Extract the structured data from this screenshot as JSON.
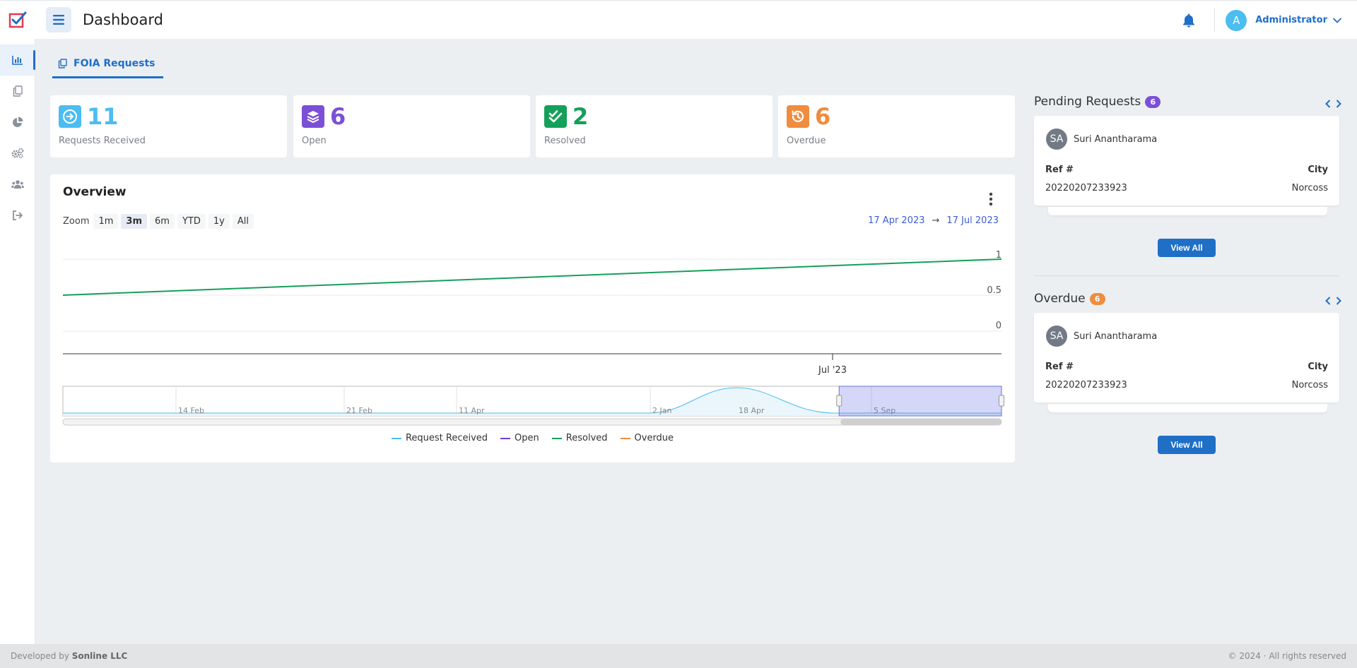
{
  "header": {
    "title": "Dashboard",
    "user_initial": "A",
    "user_name": "Administrator"
  },
  "sidebar": {
    "items": [
      {
        "name": "bar-chart-icon",
        "active": true
      },
      {
        "name": "copy-icon",
        "active": false
      },
      {
        "name": "pie-chart-icon",
        "active": false
      },
      {
        "name": "gears-icon",
        "active": false
      },
      {
        "name": "users-icon",
        "active": false
      },
      {
        "name": "sign-out-icon",
        "active": false
      }
    ]
  },
  "tab": {
    "label": "FOIA Requests"
  },
  "stats": [
    {
      "value": "11",
      "label": "Requests Received",
      "color": "#4bbdf0",
      "icon": "arrow-circle-right-icon"
    },
    {
      "value": "6",
      "label": "Open",
      "color": "#7b4fd6",
      "icon": "layers-icon"
    },
    {
      "value": "2",
      "label": "Resolved",
      "color": "#14a05a",
      "icon": "check-double-icon"
    },
    {
      "value": "6",
      "label": "Overdue",
      "color": "#ef8c3e",
      "icon": "history-icon"
    }
  ],
  "overview": {
    "title": "Overview",
    "zoom_label": "Zoom",
    "zoom_options": [
      "1m",
      "3m",
      "6m",
      "YTD",
      "1y",
      "All"
    ],
    "zoom_selected": "3m",
    "range_from": "17 Apr 2023",
    "range_to": "17 Jul 2023",
    "range_arrow": "→"
  },
  "chart_data": {
    "type": "line",
    "series": [
      {
        "name": "Request Received",
        "color": "#4bbdf0"
      },
      {
        "name": "Open",
        "color": "#6a3fe0"
      },
      {
        "name": "Resolved",
        "color": "#14a05a",
        "x": [
          "17 Apr 2023",
          "17 Jul 2023"
        ],
        "values": [
          0.5,
          1
        ]
      },
      {
        "name": "Overdue",
        "color": "#ef8c3e"
      }
    ],
    "yticks": [
      "1",
      "0.5",
      "0"
    ],
    "ylim": [
      0,
      1
    ],
    "xticks": [
      "Jul '23"
    ],
    "navigator_labels": [
      "14 Feb",
      "21 Feb",
      "11 Apr",
      "2 Jan",
      "18 Apr",
      "5 Sep"
    ],
    "navigator_selected_range": [
      0.827,
      1.0
    ]
  },
  "pending": {
    "title": "Pending Requests",
    "count": "6",
    "badge_color": "#7b4fd6",
    "item": {
      "initials": "SA",
      "name": "Suri Anantharama",
      "ref_label": "Ref #",
      "city_label": "City",
      "ref": "20220207233923",
      "city": "Norcoss"
    },
    "view_all": "View All"
  },
  "overdue": {
    "title": "Overdue",
    "count": "6",
    "badge_color": "#ef8c3e",
    "item": {
      "initials": "SA",
      "name": "Suri Anantharama",
      "ref_label": "Ref #",
      "city_label": "City",
      "ref": "20220207233923",
      "city": "Norcoss"
    },
    "view_all": "View All"
  },
  "footer": {
    "prefix": "Developed by ",
    "company": "Sonline LLC",
    "copyright": "© 2024 · All rights reserved"
  }
}
